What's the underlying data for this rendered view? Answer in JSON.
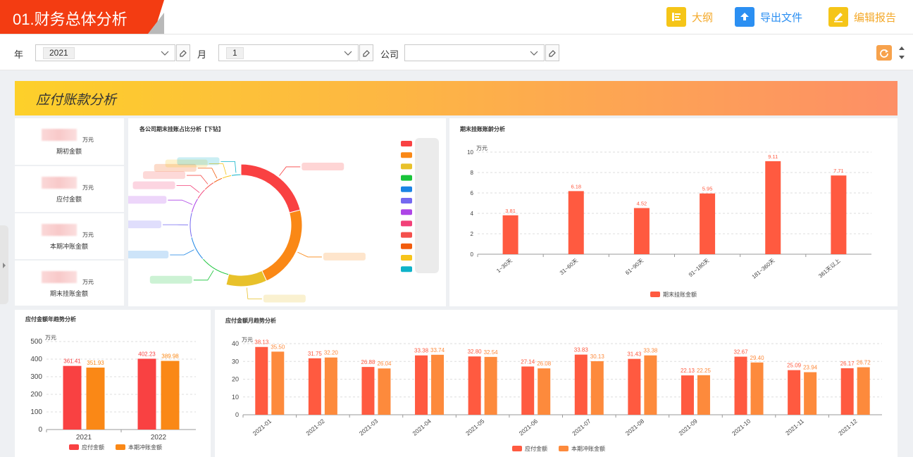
{
  "header": {
    "title": "01.财务总体分析",
    "buttons": [
      {
        "label": "大纲",
        "icon": "outline-icon",
        "color": "#f5c518"
      },
      {
        "label": "导出文件",
        "icon": "upload-icon",
        "color": "#2b8ff2"
      },
      {
        "label": "编辑报告",
        "icon": "edit-icon",
        "color": "#f5c518"
      }
    ]
  },
  "filters": {
    "year_label": "年",
    "year_value": "2021",
    "month_label": "月",
    "month_value": "1",
    "company_label": "公司",
    "company_value": ""
  },
  "section": {
    "title": "应付账款分析"
  },
  "kpis": [
    {
      "unit": "万元",
      "label": "期初金额"
    },
    {
      "unit": "万元",
      "label": "应付金额"
    },
    {
      "unit": "万元",
      "label": "本期冲账金额"
    },
    {
      "unit": "万元",
      "label": "期末挂账金额"
    }
  ],
  "colors": {
    "primary": "#ff5a40",
    "secondary": "#fd8a3c",
    "red": "#f94142",
    "orange": "#fa8816",
    "title_bg": "#f33c12"
  },
  "chart_data": [
    {
      "type": "pie",
      "title": "各公司期末挂账占比分析【下钻】",
      "donut": true,
      "note": "slice labels and legend names are blurred in the screenshot",
      "slice_colors": [
        "#f94142",
        "#fa8816",
        "#e8c12a",
        "#19c43a",
        "#1b84e4",
        "#7468f0",
        "#ad45e6",
        "#f24078",
        "#f4504c",
        "#f25c0d",
        "#f7c41a",
        "#0fb3c9"
      ],
      "values": [
        17.5,
        18.5,
        9,
        8,
        6.5,
        6.5,
        4,
        3,
        3,
        2.5,
        2.5,
        2.5
      ]
    },
    {
      "type": "bar",
      "title": "期末挂账账龄分析",
      "ylabel": "万元",
      "categories": [
        "1~30天",
        "31~60天",
        "61~90天",
        "91~180天",
        "181~360天",
        "361天以上"
      ],
      "series": [
        {
          "name": "期末挂账金额",
          "values": [
            3.81,
            6.18,
            4.52,
            5.95,
            9.11,
            7.71
          ]
        }
      ],
      "ylim": [
        0,
        10
      ],
      "yticks": [
        0,
        2,
        4,
        6,
        8,
        10
      ],
      "grid": true,
      "legend": "bottom"
    },
    {
      "type": "bar",
      "title": "应付金额年趋势分析",
      "ylabel": "万元",
      "categories": [
        "2021",
        "2022"
      ],
      "series": [
        {
          "name": "应付金额",
          "values": [
            361.41,
            402.23
          ]
        },
        {
          "name": "本期冲账金额",
          "values": [
            351.93,
            389.98
          ]
        }
      ],
      "ylim": [
        0,
        500
      ],
      "yticks": [
        0,
        100,
        200,
        300,
        400,
        500
      ],
      "grid": true,
      "legend": "bottom"
    },
    {
      "type": "bar",
      "title": "应付金额月趋势分析",
      "ylabel": "万元",
      "categories": [
        "2021-01",
        "2021-02",
        "2021-03",
        "2021-04",
        "2021-05",
        "2021-06",
        "2021-07",
        "2021-08",
        "2021-09",
        "2021-10",
        "2021-11",
        "2021-12"
      ],
      "series": [
        {
          "name": "应付金额",
          "values": [
            38.13,
            31.75,
            26.88,
            33.38,
            32.8,
            27.14,
            33.83,
            31.43,
            22.13,
            32.67,
            25.09,
            26.17
          ]
        },
        {
          "name": "本期冲账金额",
          "values": [
            35.5,
            32.2,
            26.04,
            33.74,
            32.54,
            26.08,
            30.13,
            33.38,
            22.25,
            29.4,
            23.94,
            26.72
          ]
        }
      ],
      "ylim": [
        0,
        40
      ],
      "yticks": [
        0,
        10,
        20,
        30,
        40
      ],
      "grid": true,
      "legend": "bottom"
    }
  ]
}
